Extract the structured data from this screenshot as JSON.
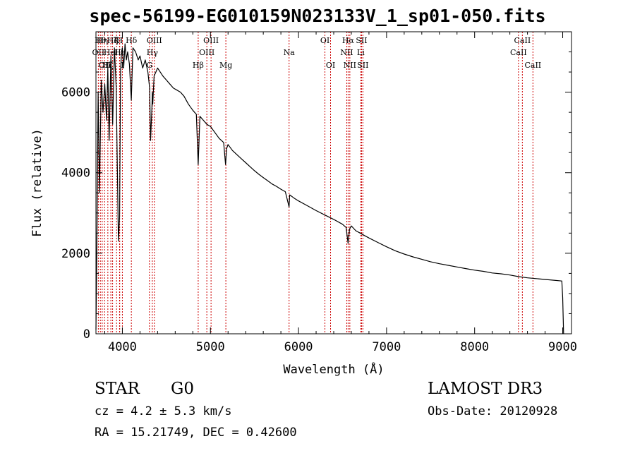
{
  "header": {
    "title": "spec-56199-EG010159N023133V_1_sp01-050.fits"
  },
  "info": {
    "class_label": "STAR",
    "subclass_label": "G0",
    "survey": "LAMOST DR3",
    "redshift_text": "cz = 4.2 ± 5.3 km/s",
    "obs_date": "Obs-Date: 20120928",
    "coords": "RA =  15.21749, DEC =    0.42600"
  },
  "chart_data": {
    "type": "line",
    "title": "spec-56199-EG010159N023133V_1_sp01-050.fits",
    "xlabel": "Wavelength (Å)",
    "ylabel": "Flux (relative)",
    "xlim": [
      3700,
      9100
    ],
    "ylim": [
      0,
      7500
    ],
    "xticks": [
      4000,
      5000,
      6000,
      7000,
      8000,
      9000
    ],
    "xtick_labels": [
      "4000",
      "5000",
      "6000",
      "7000",
      "8000",
      "9000"
    ],
    "yticks": [
      0,
      2000,
      4000,
      6000
    ],
    "ytick_labels": [
      "0",
      "2000",
      "4000",
      "6000"
    ],
    "series": [
      {
        "name": "flux",
        "color": "#000000",
        "x": [
          3700,
          3712,
          3725,
          3740,
          3760,
          3780,
          3800,
          3820,
          3835,
          3850,
          3870,
          3890,
          3910,
          3930,
          3955,
          3968,
          3980,
          3990,
          4000,
          4015,
          4030,
          4045,
          4060,
          4080,
          4101,
          4120,
          4150,
          4180,
          4200,
          4230,
          4260,
          4290,
          4310,
          4320,
          4335,
          4340,
          4345,
          4360,
          4380,
          4400,
          4430,
          4460,
          4500,
          4540,
          4580,
          4620,
          4660,
          4700,
          4750,
          4800,
          4840,
          4861,
          4880,
          4920,
          4960,
          5000,
          5050,
          5100,
          5150,
          5172,
          5184,
          5200,
          5250,
          5300,
          5350,
          5400,
          5450,
          5500,
          5550,
          5600,
          5650,
          5700,
          5750,
          5800,
          5850,
          5893,
          5900,
          5950,
          6000,
          6100,
          6200,
          6300,
          6400,
          6500,
          6540,
          6563,
          6580,
          6600,
          6650,
          6700,
          6750,
          6800,
          6900,
          7000,
          7100,
          7200,
          7300,
          7400,
          7500,
          7600,
          7700,
          7800,
          7900,
          8000,
          8100,
          8200,
          8300,
          8400,
          8500,
          8600,
          8700,
          8800,
          8900,
          8990,
          9000,
          9010
        ],
        "values": [
          100,
          2600,
          6000,
          3500,
          6300,
          5500,
          6200,
          5300,
          6600,
          4800,
          6900,
          5200,
          7100,
          6100,
          2300,
          2900,
          6500,
          7000,
          7100,
          6600,
          7200,
          6800,
          7000,
          6700,
          5800,
          7100,
          7000,
          6800,
          6900,
          6600,
          6800,
          6500,
          6100,
          4800,
          5600,
          6000,
          5700,
          6400,
          6500,
          6600,
          6500,
          6400,
          6300,
          6200,
          6100,
          6050,
          6000,
          5900,
          5700,
          5550,
          5450,
          4200,
          5400,
          5300,
          5200,
          5150,
          5000,
          4850,
          4750,
          4200,
          4600,
          4700,
          4550,
          4450,
          4350,
          4250,
          4150,
          4050,
          3960,
          3880,
          3800,
          3720,
          3660,
          3590,
          3530,
          3150,
          3450,
          3370,
          3300,
          3180,
          3060,
          2950,
          2840,
          2720,
          2640,
          2250,
          2600,
          2680,
          2560,
          2500,
          2440,
          2380,
          2270,
          2160,
          2060,
          1980,
          1910,
          1850,
          1790,
          1740,
          1700,
          1660,
          1620,
          1580,
          1550,
          1510,
          1490,
          1460,
          1420,
          1390,
          1370,
          1350,
          1330,
          1310,
          900,
          0
        ]
      }
    ],
    "line_labels": [
      {
        "wave": 3727,
        "label": "OII",
        "row": 2
      },
      {
        "wave": 3750,
        "label": "Hθ",
        "row": 1
      },
      {
        "wave": 3771,
        "label": "Hη",
        "row": 1
      },
      {
        "wave": 3798,
        "label": "OII",
        "row": 3
      },
      {
        "wave": 3835,
        "label": "Hζ",
        "row": 3
      },
      {
        "wave": 3869,
        "label": "HeI",
        "row": 2
      },
      {
        "wave": 3889,
        "label": "Hζ",
        "row": 1
      },
      {
        "wave": 3934,
        "label": "K",
        "row": 1
      },
      {
        "wave": 3968,
        "label": "H",
        "row": 1
      },
      {
        "wave": 3970,
        "label": "Hε",
        "row": 2
      },
      {
        "wave": 4000,
        "label": "I",
        "row": 3
      },
      {
        "wave": 4102,
        "label": "Hδ",
        "row": 1
      },
      {
        "wave": 4307,
        "label": "G",
        "row": 3
      },
      {
        "wave": 4340,
        "label": "Hγ",
        "row": 2
      },
      {
        "wave": 4363,
        "label": "OIII",
        "row": 1
      },
      {
        "wave": 4861,
        "label": "Hβ",
        "row": 3
      },
      {
        "wave": 4959,
        "label": "OIII",
        "row": 2
      },
      {
        "wave": 5007,
        "label": "OIII",
        "row": 1
      },
      {
        "wave": 5175,
        "label": "Mg",
        "row": 3
      },
      {
        "wave": 5893,
        "label": "Na",
        "row": 2
      },
      {
        "wave": 6300,
        "label": "OI",
        "row": 1
      },
      {
        "wave": 6364,
        "label": "OI",
        "row": 3
      },
      {
        "wave": 6548,
        "label": "NII",
        "row": 2
      },
      {
        "wave": 6563,
        "label": "Hα",
        "row": 1
      },
      {
        "wave": 6583,
        "label": "NII",
        "row": 3
      },
      {
        "wave": 6707,
        "label": "Li",
        "row": 2
      },
      {
        "wave": 6716,
        "label": "SII",
        "row": 1
      },
      {
        "wave": 6731,
        "label": "SII",
        "row": 3
      },
      {
        "wave": 8498,
        "label": "CaII",
        "row": 2
      },
      {
        "wave": 8542,
        "label": "CaII",
        "row": 1
      },
      {
        "wave": 8662,
        "label": "CaII",
        "row": 3
      }
    ],
    "line_color": "#cc0000"
  }
}
